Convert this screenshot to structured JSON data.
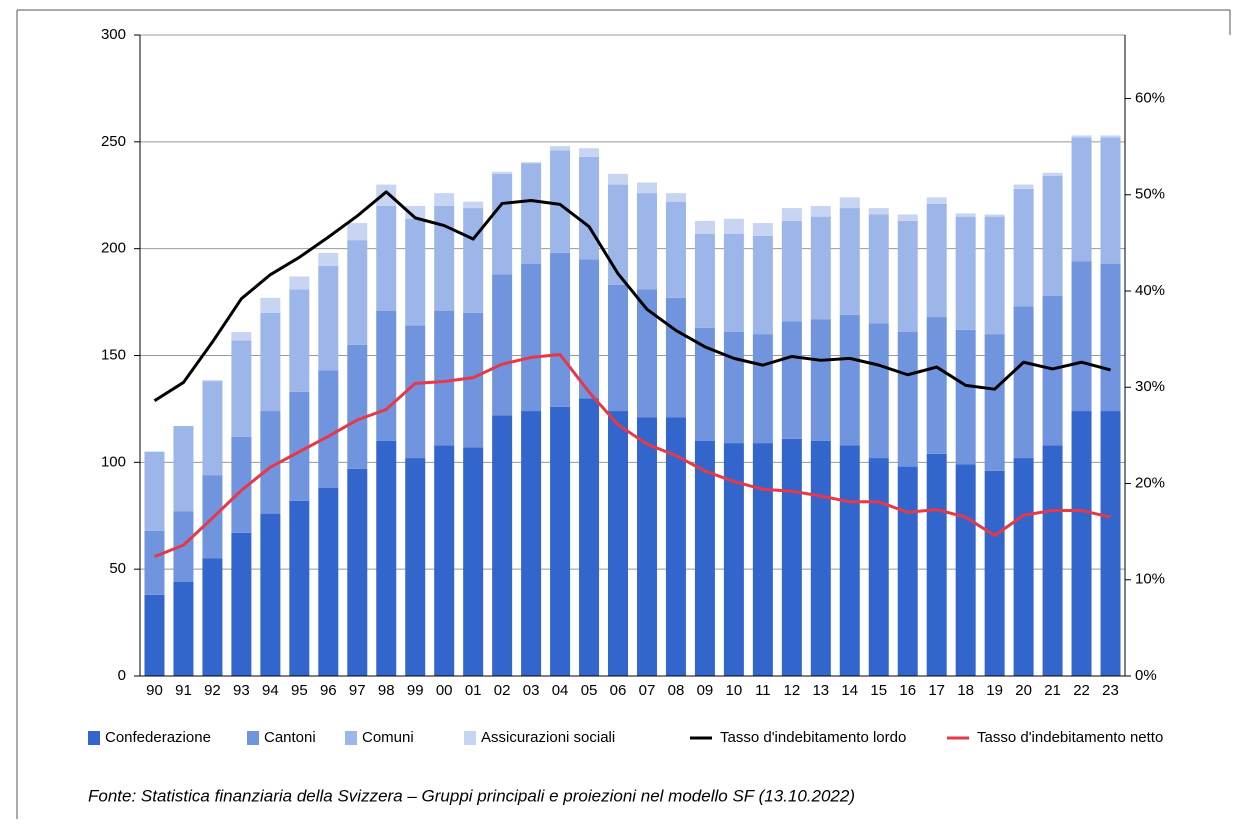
{
  "chart_data": {
    "type": "bar",
    "stacked": true,
    "grid": true,
    "source": "Fonte: Statistica finanziaria della Svizzera – Gruppi principali e proiezioni nel modello SF (13.10.2022)",
    "categories": [
      "90",
      "91",
      "92",
      "93",
      "94",
      "95",
      "96",
      "97",
      "98",
      "99",
      "00",
      "01",
      "02",
      "03",
      "04",
      "05",
      "06",
      "07",
      "08",
      "09",
      "10",
      "11",
      "12",
      "13",
      "14",
      "15",
      "16",
      "17",
      "18",
      "19",
      "20",
      "21",
      "22",
      "23"
    ],
    "ylim": [
      0,
      300
    ],
    "yticks": [
      0,
      50,
      100,
      150,
      200,
      250,
      300
    ],
    "y2lim": [
      0,
      66.6
    ],
    "y2ticks": [
      {
        "value": 0,
        "label": "0%"
      },
      {
        "value": 10,
        "label": "10%"
      },
      {
        "value": 20,
        "label": "20%"
      },
      {
        "value": 30,
        "label": "30%"
      },
      {
        "value": 40,
        "label": "40%"
      },
      {
        "value": 50,
        "label": "50%"
      },
      {
        "value": 60,
        "label": "60%"
      }
    ],
    "series": [
      {
        "name": "Confederazione",
        "color": "#3366cc",
        "values": [
          38,
          44,
          55,
          67,
          76,
          82,
          88,
          97,
          110,
          102,
          108,
          107,
          122,
          124,
          126,
          130,
          124,
          121,
          121,
          110,
          109,
          109,
          111,
          110,
          108,
          102,
          98,
          104,
          99,
          96,
          102,
          108,
          124,
          124
        ]
      },
      {
        "name": "Cantoni",
        "color": "#7094de",
        "values": [
          30,
          33,
          39,
          45,
          48,
          51,
          55,
          58,
          61,
          62,
          63,
          63,
          66,
          69,
          72,
          65,
          59,
          60,
          56,
          53,
          52,
          51,
          55,
          57,
          61,
          63,
          63,
          64,
          63,
          64,
          71,
          70,
          70,
          69
        ]
      },
      {
        "name": "Comuni",
        "color": "#9db6e9",
        "values": [
          37,
          40,
          44,
          45,
          46,
          48,
          49,
          49,
          49,
          50,
          49,
          49,
          47,
          47,
          48,
          48,
          47,
          45,
          45,
          44,
          46,
          46,
          47,
          48,
          50,
          51,
          52,
          53,
          53,
          55,
          55,
          56,
          58,
          59
        ]
      },
      {
        "name": "Assicurazioni sociali",
        "color": "#c7d5f3",
        "values": [
          0,
          0,
          0.5,
          4,
          7,
          6,
          6,
          8,
          10,
          6,
          6,
          3,
          1,
          0.5,
          2,
          4,
          5,
          5,
          4,
          6,
          7,
          6,
          6,
          5,
          5,
          3,
          3,
          3,
          1.5,
          1,
          2,
          1.5,
          1,
          1
        ]
      },
      {
        "name": "Tasso d'indebitamento lordo",
        "type": "line",
        "axis": "y2",
        "color": "#000000",
        "values": [
          28.6,
          30.5,
          34.7,
          39.2,
          41.7,
          43.5,
          45.6,
          47.8,
          50.3,
          47.6,
          46.8,
          45.4,
          49.1,
          49.4,
          49.0,
          46.7,
          41.8,
          38.1,
          35.9,
          34.2,
          33.0,
          32.3,
          33.2,
          32.8,
          33.0,
          32.3,
          31.3,
          32.1,
          30.2,
          29.8,
          32.6,
          31.9,
          32.6,
          31.8
        ]
      },
      {
        "name": "Tasso d'indebitamento netto",
        "type": "line",
        "axis": "y2",
        "color": "#e5394a",
        "values": [
          12.4,
          13.6,
          16.4,
          19.3,
          21.7,
          23.3,
          24.9,
          26.6,
          27.7,
          30.4,
          30.6,
          31.0,
          32.4,
          33.1,
          33.4,
          29.5,
          26.1,
          24.1,
          22.9,
          21.3,
          20.2,
          19.4,
          19.2,
          18.7,
          18.1,
          18.1,
          17.0,
          17.3,
          16.5,
          14.6,
          16.7,
          17.2,
          17.2,
          16.5
        ]
      }
    ]
  }
}
